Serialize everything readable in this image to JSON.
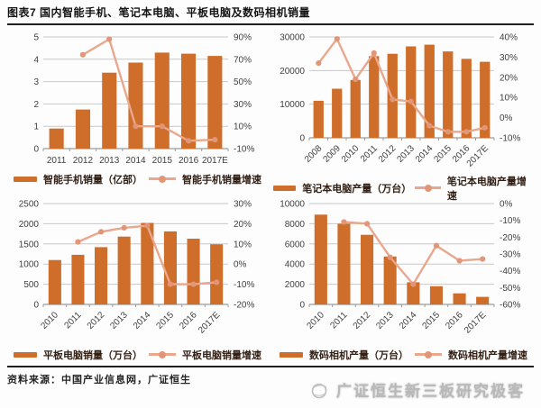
{
  "header": {
    "title": "图表7 国内智能手机、笔记本电脑、平板电脑及数码相机销量"
  },
  "footer": {
    "source_label": "资料来源：中国产业信息网，广证恒生",
    "logo_text": "广证恒生新三板研究极客"
  },
  "colors": {
    "bar": "#cf6e2a",
    "line": "#e9a78d",
    "marker": "#e39677",
    "grid": "#c8c8c8",
    "baseline": "#9b9b9b",
    "tick_text": "#3f3f3f"
  },
  "chart_data": [
    {
      "type": "bar+line",
      "name": "smartphone-sales",
      "categories": [
        "2011",
        "2012",
        "2013",
        "2014",
        "2015",
        "2016",
        "2017E"
      ],
      "bar_series": {
        "name": "智能手机销量（亿部）",
        "values": [
          0.9,
          1.75,
          3.4,
          3.85,
          4.3,
          4.25,
          4.15
        ]
      },
      "line_series": {
        "name": "智能手机销量增速",
        "unit": "%",
        "values": [
          null,
          74,
          88,
          10,
          10,
          -3,
          -2
        ]
      },
      "left_axis": {
        "min": 0,
        "max": 5,
        "ticks": [
          0,
          1,
          2,
          3,
          4,
          5
        ]
      },
      "right_axis": {
        "min": -10,
        "max": 90,
        "ticks": [
          -10,
          10,
          30,
          50,
          70,
          90
        ]
      },
      "x_labels_rotated": false,
      "grid": true,
      "legend_position": "bottom"
    },
    {
      "type": "bar+line",
      "name": "laptop-production",
      "categories": [
        "2008",
        "2009",
        "2010",
        "2011",
        "2012",
        "2013",
        "2014",
        "2015",
        "2016",
        "2017E"
      ],
      "bar_series": {
        "name": "笔记本电脑产量（万台）",
        "values": [
          11000,
          14600,
          17200,
          24300,
          25000,
          27200,
          27700,
          25700,
          23500,
          22600
        ]
      },
      "line_series": {
        "name": "笔记本电脑产量增速",
        "unit": "%",
        "values": [
          27,
          39,
          19,
          32,
          9,
          8,
          -4,
          -7,
          -7,
          -5
        ]
      },
      "left_axis": {
        "min": 0,
        "max": 30000,
        "ticks": [
          0,
          10000,
          20000,
          30000
        ]
      },
      "right_axis": {
        "min": -10,
        "max": 40,
        "ticks": [
          -10,
          0,
          10,
          20,
          30,
          40
        ]
      },
      "x_labels_rotated": true,
      "grid": true,
      "legend_position": "bottom"
    },
    {
      "type": "bar+line",
      "name": "tablet-sales",
      "categories": [
        "2010",
        "2011",
        "2012",
        "2013",
        "2014",
        "2015",
        "2016",
        "2017E"
      ],
      "bar_series": {
        "name": "平板电脑销量（万台）",
        "values": [
          1100,
          1230,
          1420,
          1680,
          2020,
          1810,
          1630,
          1490
        ]
      },
      "line_series": {
        "name": "平板电脑销量增速",
        "unit": "%",
        "values": [
          null,
          11,
          16,
          18,
          19,
          -10,
          -10,
          -9
        ]
      },
      "left_axis": {
        "min": 0,
        "max": 2500,
        "ticks": [
          0,
          500,
          1000,
          1500,
          2000,
          2500
        ]
      },
      "right_axis": {
        "min": -20,
        "max": 30,
        "ticks": [
          -20,
          -10,
          0,
          10,
          20,
          30
        ]
      },
      "x_labels_rotated": true,
      "grid": true,
      "legend_position": "bottom"
    },
    {
      "type": "bar+line",
      "name": "camera-production",
      "categories": [
        "2010",
        "2011",
        "2012",
        "2013",
        "2014",
        "2015",
        "2016",
        "2017E"
      ],
      "bar_series": {
        "name": "数码相机产量（万台）",
        "values": [
          8900,
          8000,
          6900,
          4750,
          2200,
          1800,
          1100,
          750
        ]
      },
      "line_series": {
        "name": "数码相机产量增速",
        "unit": "%",
        "values": [
          null,
          -11,
          -12,
          -32,
          -48,
          -25,
          -34,
          -33
        ]
      },
      "left_axis": {
        "min": 0,
        "max": 10000,
        "ticks": [
          0,
          2000,
          4000,
          6000,
          8000,
          10000
        ]
      },
      "right_axis": {
        "min": -60,
        "max": 0,
        "ticks": [
          -60,
          -50,
          -40,
          -30,
          -20,
          -10,
          0
        ]
      },
      "x_labels_rotated": true,
      "grid": true,
      "legend_position": "bottom"
    }
  ]
}
